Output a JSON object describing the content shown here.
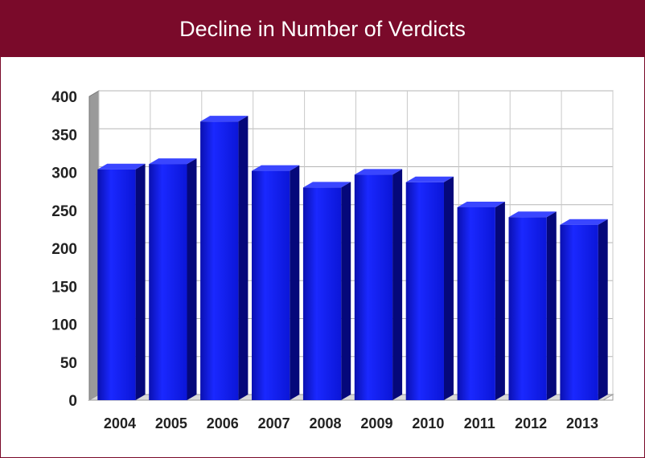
{
  "title": "Decline in Number of Verdicts",
  "chart_data": {
    "type": "bar",
    "title": "Decline in Number of Verdicts",
    "xlabel": "",
    "ylabel": "",
    "categories": [
      "2004",
      "2005",
      "2006",
      "2007",
      "2008",
      "2009",
      "2010",
      "2011",
      "2012",
      "2013"
    ],
    "values": [
      304,
      311,
      367,
      302,
      280,
      297,
      287,
      254,
      241,
      231
    ],
    "ylim": [
      0,
      400
    ],
    "yticks": [
      0,
      50,
      100,
      150,
      200,
      250,
      300,
      350,
      400
    ],
    "grid": true,
    "legend": "none",
    "bar_color": "#0a14e6"
  }
}
